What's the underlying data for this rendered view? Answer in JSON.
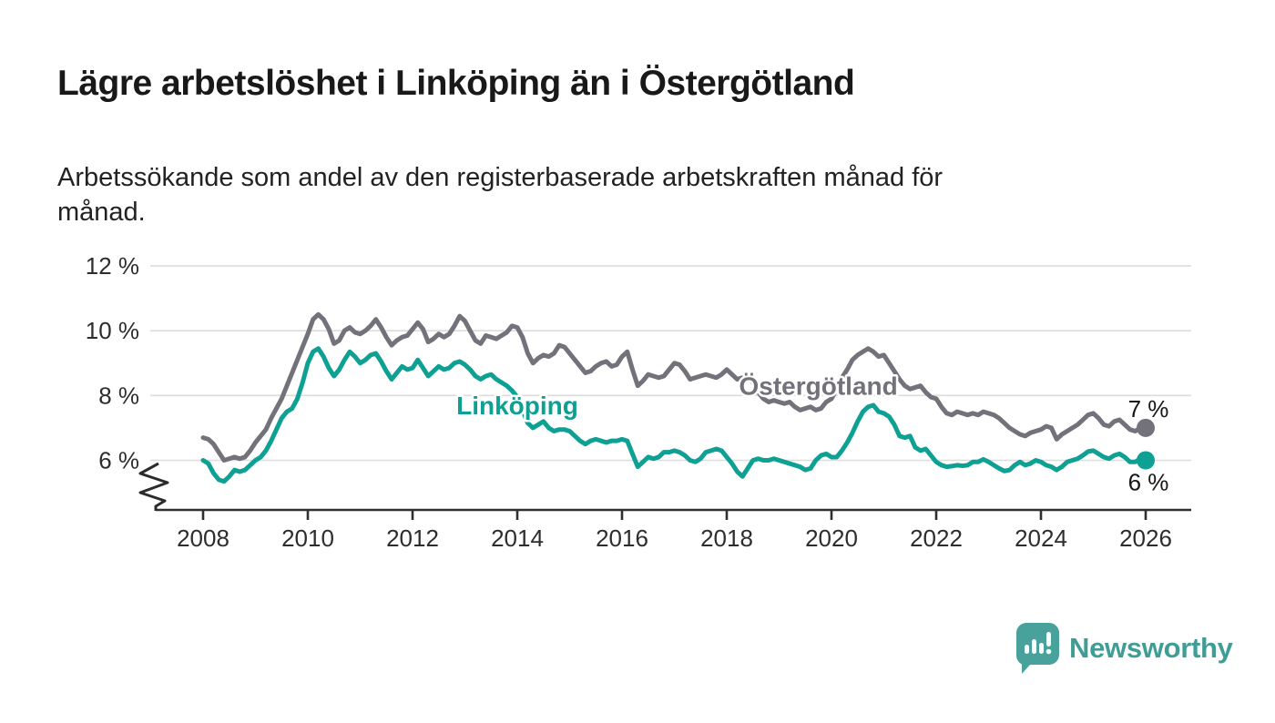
{
  "chart_data": {
    "type": "line",
    "title": "Lägre arbetslöshet i Linköping än i Östergötland",
    "subtitle_lines": [
      "Arbetssökande som andel av den registerbaserade arbetskraften månad för",
      "månad."
    ],
    "xlabel": "",
    "ylabel": "",
    "x_start": 2008.0,
    "x_step": 0.1,
    "x_end": 2026.0,
    "xticks": [
      2008,
      2010,
      2012,
      2014,
      2016,
      2018,
      2020,
      2022,
      2024,
      2026
    ],
    "yticks": [
      6,
      8,
      10,
      12
    ],
    "ytick_suffix": " %",
    "ylim": [
      4.5,
      12.4
    ],
    "grid": "horizontal-only",
    "axis_break_bottom_left": true,
    "legend": "inline-labels-on-lines",
    "series": [
      {
        "name": "Östergötland",
        "color": "#737179",
        "end_label": "7 %",
        "end_label_side": "above",
        "end_value": 7.0,
        "label_pos": {
          "x": 2019.75,
          "y": 8.3
        },
        "values": [
          6.7,
          6.65,
          6.5,
          6.25,
          6.0,
          6.05,
          6.1,
          6.05,
          6.1,
          6.3,
          6.55,
          6.75,
          6.95,
          7.3,
          7.6,
          7.9,
          8.3,
          8.7,
          9.1,
          9.5,
          9.9,
          10.35,
          10.5,
          10.35,
          10.05,
          9.6,
          9.7,
          10.0,
          10.1,
          9.95,
          9.9,
          10.0,
          10.15,
          10.35,
          10.1,
          9.8,
          9.55,
          9.7,
          9.8,
          9.85,
          10.05,
          10.25,
          10.05,
          9.65,
          9.75,
          9.9,
          9.8,
          9.9,
          10.15,
          10.45,
          10.3,
          10.0,
          9.7,
          9.6,
          9.85,
          9.8,
          9.75,
          9.85,
          9.95,
          10.15,
          10.1,
          9.8,
          9.3,
          9.0,
          9.15,
          9.25,
          9.2,
          9.3,
          9.55,
          9.5,
          9.3,
          9.1,
          8.9,
          8.7,
          8.75,
          8.9,
          9.0,
          9.05,
          8.9,
          8.95,
          9.2,
          9.35,
          8.8,
          8.3,
          8.45,
          8.65,
          8.6,
          8.55,
          8.6,
          8.8,
          9.0,
          8.95,
          8.75,
          8.5,
          8.55,
          8.6,
          8.65,
          8.6,
          8.55,
          8.65,
          8.8,
          8.65,
          8.5,
          8.55,
          8.6,
          8.4,
          8.1,
          7.9,
          7.8,
          7.85,
          7.8,
          7.75,
          7.8,
          7.65,
          7.55,
          7.6,
          7.65,
          7.55,
          7.6,
          7.8,
          7.9,
          8.2,
          8.55,
          8.8,
          9.1,
          9.25,
          9.35,
          9.45,
          9.35,
          9.2,
          9.25,
          9.0,
          8.75,
          8.5,
          8.3,
          8.2,
          8.25,
          8.3,
          8.1,
          7.95,
          7.9,
          7.65,
          7.45,
          7.4,
          7.5,
          7.45,
          7.4,
          7.45,
          7.4,
          7.5,
          7.45,
          7.4,
          7.3,
          7.15,
          7.0,
          6.9,
          6.8,
          6.75,
          6.85,
          6.9,
          6.95,
          7.05,
          7.0,
          6.65,
          6.8,
          6.9,
          7.0,
          7.1,
          7.25,
          7.4,
          7.45,
          7.3,
          7.1,
          7.05,
          7.2,
          7.25,
          7.1,
          6.95,
          6.9,
          7.0,
          7.0
        ]
      },
      {
        "name": "Linköping",
        "color": "#0fa094",
        "end_label": "6 %",
        "end_label_side": "below",
        "end_value": 6.0,
        "label_pos": {
          "x": 2014.0,
          "y": 7.7
        },
        "values": [
          6.0,
          5.9,
          5.6,
          5.4,
          5.35,
          5.5,
          5.7,
          5.65,
          5.7,
          5.85,
          6.0,
          6.1,
          6.3,
          6.6,
          6.95,
          7.3,
          7.5,
          7.6,
          7.9,
          8.4,
          9.0,
          9.35,
          9.45,
          9.2,
          8.85,
          8.6,
          8.8,
          9.1,
          9.35,
          9.2,
          9.0,
          9.1,
          9.25,
          9.3,
          9.05,
          8.75,
          8.5,
          8.7,
          8.9,
          8.8,
          8.85,
          9.1,
          8.85,
          8.6,
          8.75,
          8.9,
          8.8,
          8.85,
          9.0,
          9.05,
          8.95,
          8.8,
          8.6,
          8.5,
          8.6,
          8.65,
          8.5,
          8.4,
          8.3,
          8.15,
          7.95,
          7.55,
          7.15,
          7.0,
          7.1,
          7.2,
          7.0,
          6.9,
          6.95,
          6.95,
          6.9,
          6.75,
          6.6,
          6.5,
          6.6,
          6.65,
          6.6,
          6.55,
          6.6,
          6.6,
          6.65,
          6.6,
          6.2,
          5.8,
          5.95,
          6.1,
          6.05,
          6.1,
          6.25,
          6.25,
          6.3,
          6.25,
          6.15,
          6.0,
          5.95,
          6.05,
          6.25,
          6.3,
          6.35,
          6.3,
          6.1,
          5.9,
          5.65,
          5.5,
          5.75,
          6.0,
          6.05,
          6.0,
          6.0,
          6.05,
          6.0,
          5.95,
          5.9,
          5.85,
          5.8,
          5.7,
          5.75,
          6.0,
          6.15,
          6.2,
          6.1,
          6.1,
          6.3,
          6.55,
          6.85,
          7.2,
          7.5,
          7.65,
          7.7,
          7.5,
          7.45,
          7.35,
          7.1,
          6.75,
          6.7,
          6.75,
          6.4,
          6.3,
          6.35,
          6.15,
          5.95,
          5.85,
          5.8,
          5.82,
          5.85,
          5.83,
          5.85,
          5.95,
          5.95,
          6.03,
          5.95,
          5.85,
          5.75,
          5.67,
          5.7,
          5.85,
          5.95,
          5.85,
          5.9,
          6.0,
          5.95,
          5.85,
          5.8,
          5.7,
          5.8,
          5.95,
          6.0,
          6.05,
          6.15,
          6.27,
          6.3,
          6.2,
          6.1,
          6.05,
          6.15,
          6.2,
          6.1,
          5.95,
          5.95,
          6.05,
          6.0
        ]
      }
    ]
  },
  "branding": {
    "name": "Newsworthy",
    "color": "#3f9d96",
    "icon": "newsworthy-speech-bubble-bar-chart-icon"
  }
}
